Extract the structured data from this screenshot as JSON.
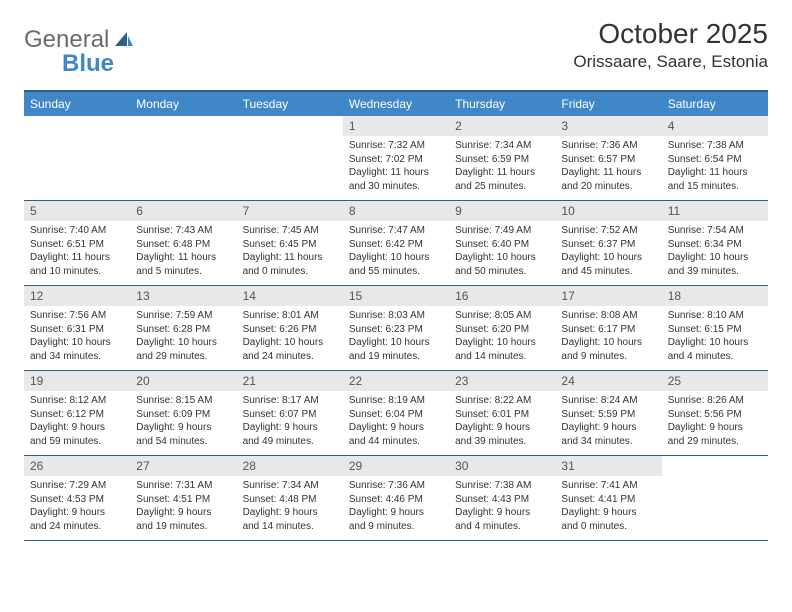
{
  "logo": {
    "text1": "General",
    "text2": "Blue"
  },
  "title": "October 2025",
  "location": "Orissaare, Saare, Estonia",
  "colors": {
    "header_bg": "#3f87c7",
    "header_text": "#ffffff",
    "border": "#2b5f8e",
    "daynum_bg": "#e8e8e8",
    "body_text": "#333333",
    "page_bg": "#ffffff"
  },
  "typography": {
    "title_fontsize": 28,
    "location_fontsize": 17,
    "dayhead_fontsize": 12,
    "cell_fontsize": 10
  },
  "day_names": [
    "Sunday",
    "Monday",
    "Tuesday",
    "Wednesday",
    "Thursday",
    "Friday",
    "Saturday"
  ],
  "weeks": [
    [
      {
        "n": "",
        "sr": "",
        "ss": "",
        "dl1": "",
        "dl2": "",
        "empty": true
      },
      {
        "n": "",
        "sr": "",
        "ss": "",
        "dl1": "",
        "dl2": "",
        "empty": true
      },
      {
        "n": "",
        "sr": "",
        "ss": "",
        "dl1": "",
        "dl2": "",
        "empty": true
      },
      {
        "n": "1",
        "sr": "Sunrise: 7:32 AM",
        "ss": "Sunset: 7:02 PM",
        "dl1": "Daylight: 11 hours",
        "dl2": "and 30 minutes."
      },
      {
        "n": "2",
        "sr": "Sunrise: 7:34 AM",
        "ss": "Sunset: 6:59 PM",
        "dl1": "Daylight: 11 hours",
        "dl2": "and 25 minutes."
      },
      {
        "n": "3",
        "sr": "Sunrise: 7:36 AM",
        "ss": "Sunset: 6:57 PM",
        "dl1": "Daylight: 11 hours",
        "dl2": "and 20 minutes."
      },
      {
        "n": "4",
        "sr": "Sunrise: 7:38 AM",
        "ss": "Sunset: 6:54 PM",
        "dl1": "Daylight: 11 hours",
        "dl2": "and 15 minutes."
      }
    ],
    [
      {
        "n": "5",
        "sr": "Sunrise: 7:40 AM",
        "ss": "Sunset: 6:51 PM",
        "dl1": "Daylight: 11 hours",
        "dl2": "and 10 minutes."
      },
      {
        "n": "6",
        "sr": "Sunrise: 7:43 AM",
        "ss": "Sunset: 6:48 PM",
        "dl1": "Daylight: 11 hours",
        "dl2": "and 5 minutes."
      },
      {
        "n": "7",
        "sr": "Sunrise: 7:45 AM",
        "ss": "Sunset: 6:45 PM",
        "dl1": "Daylight: 11 hours",
        "dl2": "and 0 minutes."
      },
      {
        "n": "8",
        "sr": "Sunrise: 7:47 AM",
        "ss": "Sunset: 6:42 PM",
        "dl1": "Daylight: 10 hours",
        "dl2": "and 55 minutes."
      },
      {
        "n": "9",
        "sr": "Sunrise: 7:49 AM",
        "ss": "Sunset: 6:40 PM",
        "dl1": "Daylight: 10 hours",
        "dl2": "and 50 minutes."
      },
      {
        "n": "10",
        "sr": "Sunrise: 7:52 AM",
        "ss": "Sunset: 6:37 PM",
        "dl1": "Daylight: 10 hours",
        "dl2": "and 45 minutes."
      },
      {
        "n": "11",
        "sr": "Sunrise: 7:54 AM",
        "ss": "Sunset: 6:34 PM",
        "dl1": "Daylight: 10 hours",
        "dl2": "and 39 minutes."
      }
    ],
    [
      {
        "n": "12",
        "sr": "Sunrise: 7:56 AM",
        "ss": "Sunset: 6:31 PM",
        "dl1": "Daylight: 10 hours",
        "dl2": "and 34 minutes."
      },
      {
        "n": "13",
        "sr": "Sunrise: 7:59 AM",
        "ss": "Sunset: 6:28 PM",
        "dl1": "Daylight: 10 hours",
        "dl2": "and 29 minutes."
      },
      {
        "n": "14",
        "sr": "Sunrise: 8:01 AM",
        "ss": "Sunset: 6:26 PM",
        "dl1": "Daylight: 10 hours",
        "dl2": "and 24 minutes."
      },
      {
        "n": "15",
        "sr": "Sunrise: 8:03 AM",
        "ss": "Sunset: 6:23 PM",
        "dl1": "Daylight: 10 hours",
        "dl2": "and 19 minutes."
      },
      {
        "n": "16",
        "sr": "Sunrise: 8:05 AM",
        "ss": "Sunset: 6:20 PM",
        "dl1": "Daylight: 10 hours",
        "dl2": "and 14 minutes."
      },
      {
        "n": "17",
        "sr": "Sunrise: 8:08 AM",
        "ss": "Sunset: 6:17 PM",
        "dl1": "Daylight: 10 hours",
        "dl2": "and 9 minutes."
      },
      {
        "n": "18",
        "sr": "Sunrise: 8:10 AM",
        "ss": "Sunset: 6:15 PM",
        "dl1": "Daylight: 10 hours",
        "dl2": "and 4 minutes."
      }
    ],
    [
      {
        "n": "19",
        "sr": "Sunrise: 8:12 AM",
        "ss": "Sunset: 6:12 PM",
        "dl1": "Daylight: 9 hours",
        "dl2": "and 59 minutes."
      },
      {
        "n": "20",
        "sr": "Sunrise: 8:15 AM",
        "ss": "Sunset: 6:09 PM",
        "dl1": "Daylight: 9 hours",
        "dl2": "and 54 minutes."
      },
      {
        "n": "21",
        "sr": "Sunrise: 8:17 AM",
        "ss": "Sunset: 6:07 PM",
        "dl1": "Daylight: 9 hours",
        "dl2": "and 49 minutes."
      },
      {
        "n": "22",
        "sr": "Sunrise: 8:19 AM",
        "ss": "Sunset: 6:04 PM",
        "dl1": "Daylight: 9 hours",
        "dl2": "and 44 minutes."
      },
      {
        "n": "23",
        "sr": "Sunrise: 8:22 AM",
        "ss": "Sunset: 6:01 PM",
        "dl1": "Daylight: 9 hours",
        "dl2": "and 39 minutes."
      },
      {
        "n": "24",
        "sr": "Sunrise: 8:24 AM",
        "ss": "Sunset: 5:59 PM",
        "dl1": "Daylight: 9 hours",
        "dl2": "and 34 minutes."
      },
      {
        "n": "25",
        "sr": "Sunrise: 8:26 AM",
        "ss": "Sunset: 5:56 PM",
        "dl1": "Daylight: 9 hours",
        "dl2": "and 29 minutes."
      }
    ],
    [
      {
        "n": "26",
        "sr": "Sunrise: 7:29 AM",
        "ss": "Sunset: 4:53 PM",
        "dl1": "Daylight: 9 hours",
        "dl2": "and 24 minutes."
      },
      {
        "n": "27",
        "sr": "Sunrise: 7:31 AM",
        "ss": "Sunset: 4:51 PM",
        "dl1": "Daylight: 9 hours",
        "dl2": "and 19 minutes."
      },
      {
        "n": "28",
        "sr": "Sunrise: 7:34 AM",
        "ss": "Sunset: 4:48 PM",
        "dl1": "Daylight: 9 hours",
        "dl2": "and 14 minutes."
      },
      {
        "n": "29",
        "sr": "Sunrise: 7:36 AM",
        "ss": "Sunset: 4:46 PM",
        "dl1": "Daylight: 9 hours",
        "dl2": "and 9 minutes."
      },
      {
        "n": "30",
        "sr": "Sunrise: 7:38 AM",
        "ss": "Sunset: 4:43 PM",
        "dl1": "Daylight: 9 hours",
        "dl2": "and 4 minutes."
      },
      {
        "n": "31",
        "sr": "Sunrise: 7:41 AM",
        "ss": "Sunset: 4:41 PM",
        "dl1": "Daylight: 9 hours",
        "dl2": "and 0 minutes."
      },
      {
        "n": "",
        "sr": "",
        "ss": "",
        "dl1": "",
        "dl2": "",
        "empty": true
      }
    ]
  ]
}
